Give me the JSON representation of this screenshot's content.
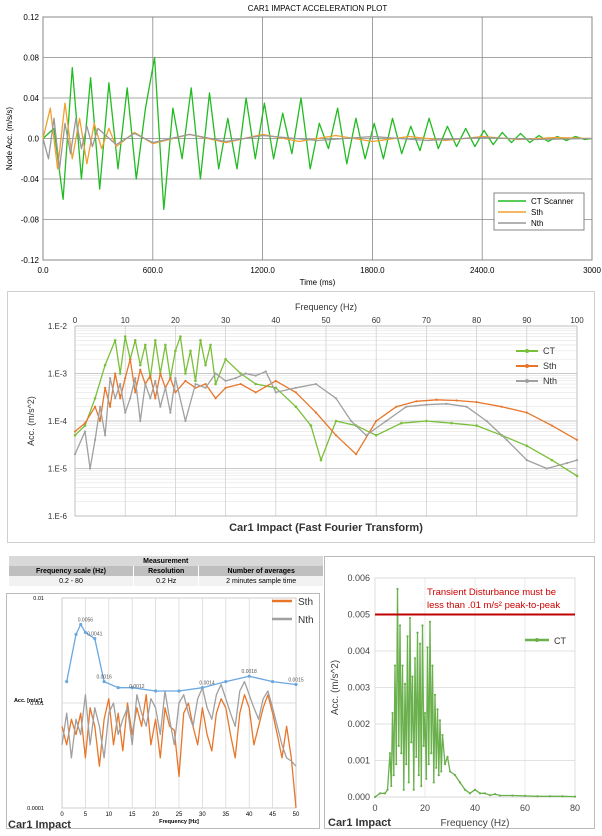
{
  "chart_data": [
    {
      "type": "line",
      "title": "CAR1 IMPACT ACCELERATION PLOT",
      "xlabel": "Time (ms)",
      "ylabel": "Node Acc. (m/s/s)",
      "xlim": [
        0,
        3000
      ],
      "ylim": [
        -0.12,
        0.12
      ],
      "xticks": [
        "0.0",
        "600.0",
        "1200.0",
        "1800.0",
        "2400.0",
        "3000"
      ],
      "yticks": [
        "0.12",
        "0.08",
        "0.04",
        "0.0",
        "-0.04",
        "-0.08",
        "-0.12"
      ],
      "grid": true,
      "legend_position": "bottom-right",
      "series": [
        {
          "name": "CT Scanner",
          "color": "#22bb22",
          "x": [
            0,
            60,
            110,
            160,
            210,
            260,
            310,
            360,
            410,
            460,
            510,
            560,
            610,
            660,
            710,
            760,
            810,
            860,
            910,
            960,
            1010,
            1060,
            1110,
            1160,
            1210,
            1260,
            1310,
            1360,
            1410,
            1460,
            1510,
            1560,
            1610,
            1660,
            1710,
            1760,
            1810,
            1860,
            1910,
            1960,
            2010,
            2060,
            2110,
            2160,
            2210,
            2260,
            2310,
            2360,
            2410,
            2460,
            2510,
            2560,
            2610,
            2660,
            2710,
            2760,
            2810,
            2860,
            2910,
            2960,
            3000
          ],
          "values": [
            0,
            0.01,
            -0.06,
            0.07,
            -0.04,
            0.06,
            -0.05,
            0.055,
            -0.03,
            0.05,
            -0.04,
            0.03,
            0.08,
            -0.07,
            0.03,
            -0.02,
            0.05,
            -0.04,
            0.045,
            -0.03,
            0.02,
            -0.03,
            0.04,
            -0.02,
            0.035,
            -0.02,
            0.025,
            -0.015,
            0.04,
            -0.03,
            0.015,
            -0.01,
            0.03,
            -0.025,
            0.02,
            -0.02,
            0.015,
            -0.02,
            0.02,
            -0.015,
            0.012,
            -0.012,
            0.02,
            -0.01,
            0.012,
            -0.008,
            0.01,
            -0.008,
            0.008,
            -0.006,
            0.006,
            -0.004,
            0.005,
            -0.004,
            0.003,
            -0.003,
            0.002,
            -0.002,
            0.002,
            -0.001,
            0
          ]
        },
        {
          "name": "Sth",
          "color": "#f0a030",
          "x": [
            0,
            40,
            80,
            120,
            160,
            200,
            240,
            280,
            320,
            360,
            400,
            500,
            600,
            800,
            1000,
            1200,
            1400,
            1600,
            1800,
            2000,
            2200,
            2400,
            2600,
            2800,
            3000
          ],
          "values": [
            0,
            0.03,
            -0.03,
            0.035,
            -0.02,
            0.02,
            -0.025,
            0.015,
            -0.01,
            0.01,
            -0.008,
            0.006,
            -0.005,
            0.004,
            -0.004,
            0.004,
            -0.003,
            0.003,
            -0.003,
            0.002,
            -0.002,
            0.002,
            -0.001,
            0.001,
            0
          ]
        },
        {
          "name": "Nth",
          "color": "#999999",
          "x": [
            0,
            30,
            60,
            90,
            120,
            150,
            180,
            210,
            240,
            270,
            300,
            400,
            500,
            600,
            800,
            1000,
            1200,
            1500,
            1800,
            2100,
            2400,
            2700,
            3000
          ],
          "values": [
            0,
            -0.02,
            0.02,
            -0.03,
            0.015,
            -0.015,
            0.02,
            -0.01,
            0.012,
            -0.008,
            0.01,
            -0.006,
            0.005,
            -0.004,
            0.004,
            -0.003,
            0.003,
            -0.002,
            0.002,
            -0.002,
            0.001,
            -0.001,
            0
          ]
        }
      ]
    },
    {
      "type": "line",
      "title": "Car1 Impact (Fast Fourier Transform)",
      "xlabel": "Frequency (Hz)",
      "ylabel": "Acc. (m/s^2)",
      "xlim": [
        0,
        100
      ],
      "ylim": [
        1e-06,
        0.01
      ],
      "yscale": "log",
      "xticks": [
        "0",
        "10",
        "20",
        "30",
        "40",
        "50",
        "60",
        "70",
        "80",
        "90",
        "100"
      ],
      "yticks": [
        "1.E-2",
        "1.E-3",
        "1.E-4",
        "1.E-5",
        "1.E-6"
      ],
      "grid": true,
      "legend_position": "top-right",
      "series": [
        {
          "name": "CT",
          "color": "#7abf3a",
          "x": [
            0,
            2,
            4,
            6,
            8,
            9,
            10,
            11,
            12,
            13,
            14,
            15,
            16,
            17,
            18,
            19,
            20,
            21,
            22,
            23,
            24,
            25,
            26,
            27,
            28,
            30,
            33,
            36,
            40,
            44,
            47,
            49,
            52,
            56,
            60,
            65,
            70,
            75,
            80,
            85,
            90,
            95,
            100
          ],
          "values": [
            5e-05,
            8e-05,
            0.0003,
            0.0015,
            0.005,
            0.001,
            0.006,
            0.002,
            0.005,
            0.0015,
            0.004,
            0.0008,
            0.005,
            0.001,
            0.004,
            0.0008,
            0.003,
            0.006,
            0.001,
            0.003,
            0.0007,
            0.005,
            0.0015,
            0.004,
            0.0006,
            0.002,
            0.001,
            0.0006,
            0.0005,
            0.0002,
            8e-05,
            1.5e-05,
            0.0001,
            8e-05,
            5e-05,
            9e-05,
            0.0001,
            9e-05,
            8e-05,
            5e-05,
            3e-05,
            1.5e-05,
            7e-06
          ]
        },
        {
          "name": "Sth",
          "color": "#e8762a",
          "x": [
            0,
            2,
            4,
            5,
            6,
            7,
            8,
            9,
            10,
            11,
            12,
            13,
            14,
            15,
            16,
            17,
            18,
            19,
            20,
            22,
            24,
            26,
            28,
            30,
            33,
            36,
            40,
            44,
            48,
            52,
            56,
            60,
            64,
            68,
            72,
            76,
            80,
            85,
            90,
            95,
            100
          ],
          "values": [
            6e-05,
            9e-05,
            0.0002,
            0.0001,
            0.0005,
            0.0002,
            0.001,
            0.0003,
            0.0008,
            0.002,
            0.0004,
            0.0012,
            0.0006,
            0.0009,
            0.0003,
            0.001,
            0.0005,
            0.0008,
            0.0004,
            0.0007,
            0.0005,
            0.0006,
            0.0003,
            0.0005,
            0.0006,
            0.0004,
            0.0007,
            0.0004,
            0.00015,
            5e-05,
            2e-05,
            0.0001,
            0.0002,
            0.00026,
            0.00028,
            0.00027,
            0.00025,
            0.0002,
            0.00015,
            8e-05,
            4e-05
          ]
        },
        {
          "name": "Nth",
          "color": "#a0a0a0",
          "x": [
            0,
            2,
            3,
            4,
            5,
            6,
            7,
            8,
            9,
            10,
            11,
            12,
            13,
            14,
            15,
            16,
            17,
            18,
            19,
            20,
            22,
            24,
            26,
            28,
            30,
            32,
            34,
            36,
            38,
            40,
            44,
            48,
            52,
            55,
            58,
            62,
            66,
            70,
            74,
            78,
            82,
            86,
            90,
            94,
            98,
            100
          ],
          "values": [
            2e-05,
            6e-05,
            1e-05,
            4e-05,
            0.0002,
            5e-05,
            0.0008,
            0.0003,
            0.0006,
            0.00015,
            0.0003,
            0.0008,
            0.0001,
            0.0006,
            0.0003,
            0.0007,
            0.0002,
            0.0005,
            0.00015,
            0.0008,
            0.0001,
            0.0006,
            0.0005,
            0.001,
            0.0007,
            0.0008,
            0.001,
            0.0009,
            0.0011,
            0.0004,
            0.0005,
            0.0006,
            0.0003,
            0.0001,
            5e-05,
            0.0001,
            0.0002,
            0.00022,
            0.00023,
            0.0002,
            0.0001,
            4e-05,
            1.5e-05,
            1e-05,
            1.3e-05,
            1.5e-05
          ]
        }
      ]
    },
    {
      "type": "line",
      "title": "Car1 Impact",
      "xlabel": "Frequency [Hz]",
      "ylabel": "Acc. [m/s²]",
      "xlim": [
        0,
        50
      ],
      "ylim": [
        0.0001,
        0.01
      ],
      "yscale": "log",
      "xticks": [
        "0",
        "5",
        "10",
        "15",
        "20",
        "25",
        "30",
        "35",
        "40",
        "45",
        "50"
      ],
      "yticks": [
        "0.01",
        "0.001",
        "0.0001"
      ],
      "grid": true,
      "legend_position": "top-right",
      "series": [
        {
          "name": "Sth",
          "color": "#e8762a",
          "x": [
            0,
            1,
            2,
            3,
            4,
            5,
            6,
            7,
            8,
            9,
            10,
            11,
            12,
            13,
            14,
            15,
            16,
            17,
            18,
            19,
            20,
            21,
            22,
            23,
            24,
            25,
            26,
            27,
            28,
            29,
            30,
            31,
            32,
            33,
            34,
            35,
            36,
            37,
            38,
            39,
            40,
            41,
            42,
            43,
            44,
            45,
            46,
            47,
            48,
            49,
            50
          ],
          "values": [
            0.0006,
            0.0004,
            0.0007,
            0.0005,
            0.0008,
            0.0003,
            0.0009,
            0.0006,
            0.00025,
            0.0007,
            0.0011,
            0.0004,
            0.0008,
            0.00035,
            0.001,
            0.0005,
            0.0009,
            0.0006,
            0.0012,
            0.0004,
            0.0007,
            0.0003,
            0.0009,
            0.0006,
            0.00055,
            0.0002,
            0.0008,
            0.001,
            0.0006,
            0.0004,
            0.0009,
            0.0005,
            0.00035,
            0.0008,
            0.0011,
            0.0009,
            0.0005,
            0.0003,
            0.0008,
            0.0012,
            0.0009,
            0.0004,
            0.0006,
            0.0009,
            0.0012,
            0.0008,
            0.0005,
            0.0003,
            0.0006,
            0.0003,
            0.0001
          ]
        },
        {
          "name": "Nth",
          "color": "#a0a0a0",
          "x": [
            0,
            1,
            2,
            3,
            4,
            5,
            6,
            7,
            8,
            9,
            10,
            11,
            12,
            13,
            14,
            15,
            16,
            17,
            18,
            19,
            20,
            21,
            22,
            23,
            24,
            25,
            26,
            27,
            28,
            29,
            30,
            31,
            32,
            33,
            34,
            35,
            36,
            37,
            38,
            39,
            40,
            41,
            42,
            43,
            44,
            45,
            46,
            47,
            48,
            49,
            50
          ],
          "values": [
            0.0004,
            0.0008,
            0.0003,
            0.0007,
            0.0005,
            0.0012,
            0.0004,
            0.0009,
            0.0006,
            0.0003,
            0.0008,
            0.001,
            0.0005,
            0.0007,
            0.0009,
            0.0004,
            0.0012,
            0.0008,
            0.0006,
            0.0011,
            0.0009,
            0.0005,
            0.0013,
            0.0007,
            0.0004,
            0.001,
            0.0012,
            0.0008,
            0.0006,
            0.0011,
            0.0014,
            0.0009,
            0.0007,
            0.0012,
            0.0015,
            0.0011,
            0.0008,
            0.0006,
            0.0013,
            0.0016,
            0.0012,
            0.0009,
            0.0007,
            0.0011,
            0.0013,
            0.0009,
            0.0006,
            0.0004,
            0.0003,
            0.00028,
            0.00025
          ]
        },
        {
          "name": "",
          "color": "#6aa8e0",
          "x": [
            1,
            3,
            4,
            5,
            7,
            9,
            12,
            15,
            20,
            25,
            30,
            35,
            40,
            45,
            50
          ],
          "values": [
            0.0016,
            0.0045,
            0.0056,
            0.0047,
            0.0041,
            0.0016,
            0.0014,
            0.0014,
            0.0013,
            0.0013,
            0.0014,
            0.0016,
            0.0018,
            0.0016,
            0.0015
          ]
        }
      ],
      "annotations": [
        {
          "text": "0.0056",
          "x": 5,
          "y": 0.0056
        },
        {
          "text": "0.0041",
          "x": 7,
          "y": 0.0041
        },
        {
          "text": "0.0016",
          "x": 9,
          "y": 0.0016
        },
        {
          "text": "0.0012",
          "x": 16,
          "y": 0.0013
        },
        {
          "text": "0.0014",
          "x": 31,
          "y": 0.0014
        },
        {
          "text": "0.0018",
          "x": 40,
          "y": 0.0018
        },
        {
          "text": "0.0015",
          "x": 50,
          "y": 0.0015
        }
      ]
    },
    {
      "type": "line",
      "title": "Car1 Impact",
      "xlabel": "Frequency (Hz)",
      "ylabel": "Acc. (m/s^2)",
      "xlim": [
        0,
        80
      ],
      "ylim": [
        0,
        0.006
      ],
      "xticks": [
        "0",
        "20",
        "40",
        "60",
        "80"
      ],
      "yticks": [
        "0.006",
        "0.005",
        "0.004",
        "0.003",
        "0.002",
        "0.001",
        "0.000"
      ],
      "grid": true,
      "legend_position": "right",
      "threshold": 0.005,
      "threshold_label_lines": [
        "Transient Disturbance must be",
        "less than .01 m/s² peak-to-peak"
      ],
      "series": [
        {
          "name": "CT",
          "color": "#6ab04c",
          "x": [
            0,
            2,
            4,
            5,
            6,
            6.5,
            7,
            7.5,
            8,
            8.5,
            9,
            9.5,
            10,
            10.5,
            11,
            11.5,
            12,
            12.5,
            13,
            13.5,
            14,
            14.5,
            15,
            15.5,
            16,
            16.5,
            17,
            17.5,
            18,
            18.5,
            19,
            19.5,
            20,
            20.5,
            21,
            21.5,
            22,
            22.5,
            23,
            23.5,
            24,
            24.5,
            25,
            25.5,
            26,
            26.5,
            27,
            28,
            29,
            30,
            32,
            34,
            36,
            38,
            40,
            42,
            44,
            46,
            48,
            50,
            55,
            60,
            65,
            70,
            75,
            80
          ],
          "values": [
            0,
            0.0001,
            0.0001,
            0.0002,
            0.0012,
            0.0003,
            0.0023,
            0.0006,
            0.0036,
            0.0009,
            0.0057,
            0.0014,
            0.0047,
            0.0012,
            0.0036,
            0.0002,
            0.0031,
            0.0009,
            0.0044,
            0.0004,
            0.0049,
            0.0015,
            0.0033,
            0.0002,
            0.0038,
            0.0011,
            0.0045,
            0.0006,
            0.0042,
            0.0003,
            0.0047,
            0.0014,
            0.0023,
            0.0005,
            0.0041,
            0.0009,
            0.0048,
            0.0012,
            0.0036,
            0.0004,
            0.0028,
            0.0008,
            0.0024,
            0.0006,
            0.0021,
            0.0007,
            0.0017,
            0.0009,
            0.0011,
            0.0007,
            0.0006,
            0.0004,
            0.0002,
            0.0001,
            0.0002,
            0.0001,
            0.0001,
            5e-05,
            8e-05,
            4e-05,
            4e-05,
            3e-05,
            2e-05,
            2e-05,
            2e-05,
            1e-05
          ]
        }
      ]
    }
  ]
}
